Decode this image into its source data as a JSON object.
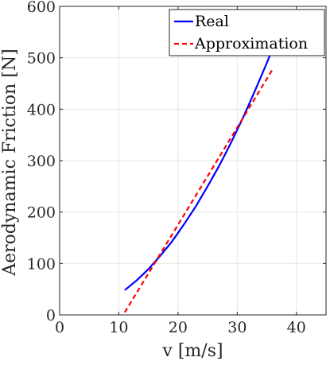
{
  "chart_data": {
    "type": "line",
    "xlabel": "v [m/s]",
    "ylabel": "Aerodynamic Friction [N]",
    "xlim": [
      0,
      45
    ],
    "ylim": [
      0,
      600
    ],
    "xticks": [
      0,
      10,
      20,
      30,
      40
    ],
    "yticks": [
      0,
      100,
      200,
      300,
      400,
      500,
      600
    ],
    "grid": true,
    "legend_position": "top-right",
    "series": [
      {
        "name": "Real",
        "color": "#0000ff",
        "style": "solid",
        "x": [
          11,
          13,
          15,
          17,
          19,
          21,
          23,
          25,
          27,
          29,
          31,
          33,
          35,
          35.7
        ],
        "y": [
          48,
          67,
          89,
          115,
          143,
          176,
          211,
          250,
          291,
          336,
          384,
          436,
          490,
          510
        ]
      },
      {
        "name": "Approximation",
        "color": "#ff0000",
        "style": "dashed",
        "x": [
          11,
          36
        ],
        "y": [
          5,
          478
        ]
      }
    ]
  }
}
